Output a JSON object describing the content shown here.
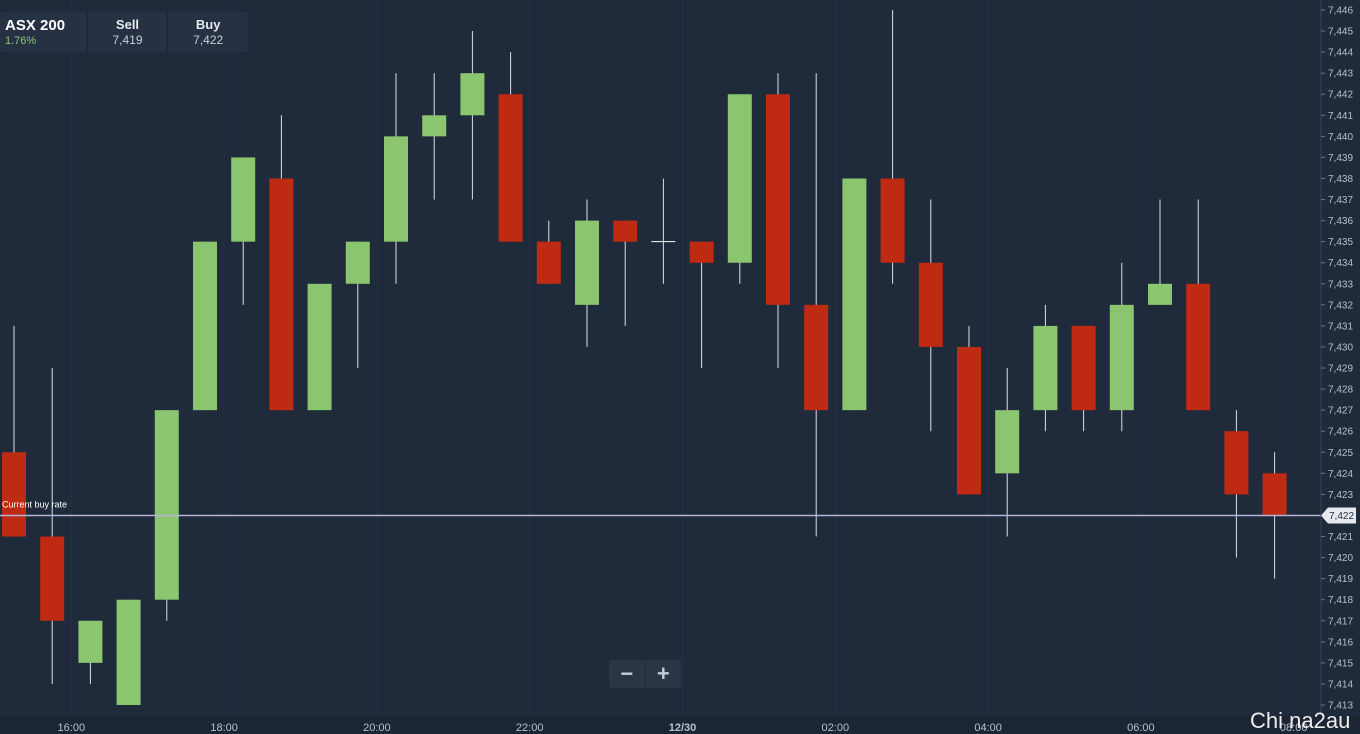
{
  "header": {
    "instrument": "ASX 200",
    "change": "1.76%",
    "sell_label": "Sell",
    "sell_value": "7,419",
    "buy_label": "Buy",
    "buy_value": "7,422"
  },
  "zoom": {
    "out_icon": "minus-icon",
    "in_icon": "plus-icon"
  },
  "watermark": "Chi na2au",
  "colors": {
    "background": "#1f2a3a",
    "bullish": "#8cc570",
    "bearish": "#bf2b12",
    "buy_line": "#b6b3d8",
    "grid": "#263244"
  },
  "chart_data": {
    "type": "candlestick",
    "current_buy_rate_label": "Current buy rate",
    "current_buy_rate": 7422,
    "current_buy_rate_text": "7,422",
    "y_ticks": [
      "7,413",
      "7,414",
      "7,415",
      "7,416",
      "7,417",
      "7,418",
      "7,419",
      "7,420",
      "7,421",
      "7,422",
      "7,423",
      "7,424",
      "7,425",
      "7,426",
      "7,427",
      "7,428",
      "7,429",
      "7,430",
      "7,431",
      "7,432",
      "7,433",
      "7,434",
      "7,435",
      "7,436",
      "7,437",
      "7,438",
      "7,439",
      "7,440",
      "7,441",
      "7,442",
      "7,443",
      "7,444",
      "7,445",
      "7,446"
    ],
    "ylim": [
      7412.7,
      7446.3
    ],
    "x_ticks": [
      {
        "label": "16:00",
        "index": 1.5
      },
      {
        "label": "18:00",
        "index": 5.5
      },
      {
        "label": "20:00",
        "index": 9.5
      },
      {
        "label": "22:00",
        "index": 13.5
      },
      {
        "label": "12/30",
        "index": 17.5
      },
      {
        "label": "02:00",
        "index": 21.5
      },
      {
        "label": "04:00",
        "index": 25.5
      },
      {
        "label": "06:00",
        "index": 29.5
      },
      {
        "label": "08:00",
        "index": 33.5
      }
    ],
    "candles": [
      {
        "o": 7425,
        "h": 7431,
        "l": 7421,
        "c": 7421
      },
      {
        "o": 7421,
        "h": 7429,
        "l": 7414,
        "c": 7417
      },
      {
        "o": 7415,
        "h": 7417,
        "l": 7414,
        "c": 7417
      },
      {
        "o": 7413,
        "h": 7418,
        "l": 7413,
        "c": 7418
      },
      {
        "o": 7418,
        "h": 7427,
        "l": 7417,
        "c": 7427
      },
      {
        "o": 7427,
        "h": 7435,
        "l": 7427,
        "c": 7435
      },
      {
        "o": 7435,
        "h": 7439,
        "l": 7432,
        "c": 7439
      },
      {
        "o": 7438,
        "h": 7441,
        "l": 7427,
        "c": 7427
      },
      {
        "o": 7427,
        "h": 7433,
        "l": 7427,
        "c": 7433
      },
      {
        "o": 7433,
        "h": 7435,
        "l": 7429,
        "c": 7435
      },
      {
        "o": 7435,
        "h": 7443,
        "l": 7433,
        "c": 7440
      },
      {
        "o": 7440,
        "h": 7443,
        "l": 7437,
        "c": 7441
      },
      {
        "o": 7441,
        "h": 7445,
        "l": 7437,
        "c": 7443
      },
      {
        "o": 7442,
        "h": 7444,
        "l": 7435,
        "c": 7435
      },
      {
        "o": 7435,
        "h": 7436,
        "l": 7433,
        "c": 7433
      },
      {
        "o": 7432,
        "h": 7437,
        "l": 7430,
        "c": 7436
      },
      {
        "o": 7436,
        "h": 7436,
        "l": 7431,
        "c": 7435
      },
      {
        "o": 7435,
        "h": 7438,
        "l": 7433,
        "c": 7435
      },
      {
        "o": 7435,
        "h": 7435,
        "l": 7429,
        "c": 7434
      },
      {
        "o": 7434,
        "h": 7442,
        "l": 7433,
        "c": 7442
      },
      {
        "o": 7442,
        "h": 7443,
        "l": 7429,
        "c": 7432
      },
      {
        "o": 7432,
        "h": 7443,
        "l": 7421,
        "c": 7427
      },
      {
        "o": 7427,
        "h": 7438,
        "l": 7427,
        "c": 7438
      },
      {
        "o": 7438,
        "h": 7446,
        "l": 7433,
        "c": 7434
      },
      {
        "o": 7434,
        "h": 7437,
        "l": 7426,
        "c": 7430
      },
      {
        "o": 7430,
        "h": 7431,
        "l": 7423,
        "c": 7423
      },
      {
        "o": 7424,
        "h": 7429,
        "l": 7421,
        "c": 7427
      },
      {
        "o": 7427,
        "h": 7432,
        "l": 7426,
        "c": 7431
      },
      {
        "o": 7431,
        "h": 7431,
        "l": 7426,
        "c": 7427
      },
      {
        "o": 7427,
        "h": 7434,
        "l": 7426,
        "c": 7432
      },
      {
        "o": 7432,
        "h": 7437,
        "l": 7432,
        "c": 7433
      },
      {
        "o": 7433,
        "h": 7437,
        "l": 7427,
        "c": 7427
      },
      {
        "o": 7426,
        "h": 7427,
        "l": 7420,
        "c": 7423
      },
      {
        "o": 7424,
        "h": 7425,
        "l": 7419,
        "c": 7422
      }
    ]
  }
}
